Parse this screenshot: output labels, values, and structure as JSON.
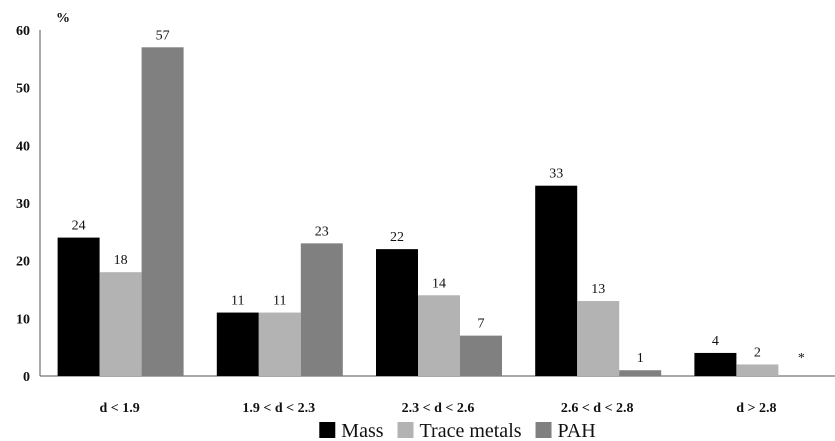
{
  "chart_data": {
    "type": "bar",
    "title": "",
    "y_unit_label": "%",
    "ylim": [
      0,
      60
    ],
    "yticks": [
      0,
      10,
      20,
      30,
      40,
      50,
      60
    ],
    "categories": [
      "d < 1.9",
      "1.9 < d < 2.3",
      "2.3 < d < 2.6",
      "2.6 < d < 2.8",
      "d > 2.8"
    ],
    "series": [
      {
        "name": "Mass",
        "color": "#000000",
        "values": [
          24,
          11,
          22,
          33,
          4
        ]
      },
      {
        "name": "Trace metals",
        "color": "#b3b3b3",
        "values": [
          18,
          11,
          14,
          13,
          2
        ]
      },
      {
        "name": "PAH",
        "color": "#808080",
        "values": [
          57,
          23,
          7,
          1,
          null
        ]
      }
    ],
    "missing_marker": "*",
    "grid": false,
    "legend_position": "bottom"
  }
}
